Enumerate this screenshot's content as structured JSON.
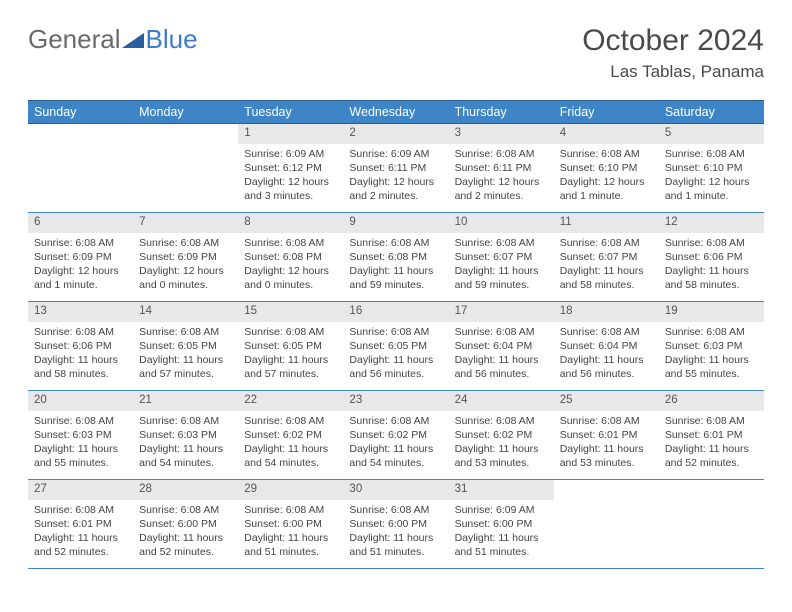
{
  "logo": {
    "general": "General",
    "blue": "Blue"
  },
  "title": "October 2024",
  "location": "Las Tablas, Panama",
  "colors": {
    "header_bg": "#3d85c6",
    "header_border": "#2c5d8f",
    "daynum_bg": "#e8e8e8",
    "text": "#444444",
    "logo_blue": "#3d7cc9"
  },
  "fonts": {
    "title_size": 30,
    "location_size": 17,
    "dow_size": 12.5,
    "body_size": 10.5
  },
  "days_of_week": [
    "Sunday",
    "Monday",
    "Tuesday",
    "Wednesday",
    "Thursday",
    "Friday",
    "Saturday"
  ],
  "weeks": [
    [
      {
        "n": "",
        "sunrise": "",
        "sunset": "",
        "daylight": ""
      },
      {
        "n": "",
        "sunrise": "",
        "sunset": "",
        "daylight": ""
      },
      {
        "n": "1",
        "sunrise": "Sunrise: 6:09 AM",
        "sunset": "Sunset: 6:12 PM",
        "daylight": "Daylight: 12 hours and 3 minutes."
      },
      {
        "n": "2",
        "sunrise": "Sunrise: 6:09 AM",
        "sunset": "Sunset: 6:11 PM",
        "daylight": "Daylight: 12 hours and 2 minutes."
      },
      {
        "n": "3",
        "sunrise": "Sunrise: 6:08 AM",
        "sunset": "Sunset: 6:11 PM",
        "daylight": "Daylight: 12 hours and 2 minutes."
      },
      {
        "n": "4",
        "sunrise": "Sunrise: 6:08 AM",
        "sunset": "Sunset: 6:10 PM",
        "daylight": "Daylight: 12 hours and 1 minute."
      },
      {
        "n": "5",
        "sunrise": "Sunrise: 6:08 AM",
        "sunset": "Sunset: 6:10 PM",
        "daylight": "Daylight: 12 hours and 1 minute."
      }
    ],
    [
      {
        "n": "6",
        "sunrise": "Sunrise: 6:08 AM",
        "sunset": "Sunset: 6:09 PM",
        "daylight": "Daylight: 12 hours and 1 minute."
      },
      {
        "n": "7",
        "sunrise": "Sunrise: 6:08 AM",
        "sunset": "Sunset: 6:09 PM",
        "daylight": "Daylight: 12 hours and 0 minutes."
      },
      {
        "n": "8",
        "sunrise": "Sunrise: 6:08 AM",
        "sunset": "Sunset: 6:08 PM",
        "daylight": "Daylight: 12 hours and 0 minutes."
      },
      {
        "n": "9",
        "sunrise": "Sunrise: 6:08 AM",
        "sunset": "Sunset: 6:08 PM",
        "daylight": "Daylight: 11 hours and 59 minutes."
      },
      {
        "n": "10",
        "sunrise": "Sunrise: 6:08 AM",
        "sunset": "Sunset: 6:07 PM",
        "daylight": "Daylight: 11 hours and 59 minutes."
      },
      {
        "n": "11",
        "sunrise": "Sunrise: 6:08 AM",
        "sunset": "Sunset: 6:07 PM",
        "daylight": "Daylight: 11 hours and 58 minutes."
      },
      {
        "n": "12",
        "sunrise": "Sunrise: 6:08 AM",
        "sunset": "Sunset: 6:06 PM",
        "daylight": "Daylight: 11 hours and 58 minutes."
      }
    ],
    [
      {
        "n": "13",
        "sunrise": "Sunrise: 6:08 AM",
        "sunset": "Sunset: 6:06 PM",
        "daylight": "Daylight: 11 hours and 58 minutes."
      },
      {
        "n": "14",
        "sunrise": "Sunrise: 6:08 AM",
        "sunset": "Sunset: 6:05 PM",
        "daylight": "Daylight: 11 hours and 57 minutes."
      },
      {
        "n": "15",
        "sunrise": "Sunrise: 6:08 AM",
        "sunset": "Sunset: 6:05 PM",
        "daylight": "Daylight: 11 hours and 57 minutes."
      },
      {
        "n": "16",
        "sunrise": "Sunrise: 6:08 AM",
        "sunset": "Sunset: 6:05 PM",
        "daylight": "Daylight: 11 hours and 56 minutes."
      },
      {
        "n": "17",
        "sunrise": "Sunrise: 6:08 AM",
        "sunset": "Sunset: 6:04 PM",
        "daylight": "Daylight: 11 hours and 56 minutes."
      },
      {
        "n": "18",
        "sunrise": "Sunrise: 6:08 AM",
        "sunset": "Sunset: 6:04 PM",
        "daylight": "Daylight: 11 hours and 56 minutes."
      },
      {
        "n": "19",
        "sunrise": "Sunrise: 6:08 AM",
        "sunset": "Sunset: 6:03 PM",
        "daylight": "Daylight: 11 hours and 55 minutes."
      }
    ],
    [
      {
        "n": "20",
        "sunrise": "Sunrise: 6:08 AM",
        "sunset": "Sunset: 6:03 PM",
        "daylight": "Daylight: 11 hours and 55 minutes."
      },
      {
        "n": "21",
        "sunrise": "Sunrise: 6:08 AM",
        "sunset": "Sunset: 6:03 PM",
        "daylight": "Daylight: 11 hours and 54 minutes."
      },
      {
        "n": "22",
        "sunrise": "Sunrise: 6:08 AM",
        "sunset": "Sunset: 6:02 PM",
        "daylight": "Daylight: 11 hours and 54 minutes."
      },
      {
        "n": "23",
        "sunrise": "Sunrise: 6:08 AM",
        "sunset": "Sunset: 6:02 PM",
        "daylight": "Daylight: 11 hours and 54 minutes."
      },
      {
        "n": "24",
        "sunrise": "Sunrise: 6:08 AM",
        "sunset": "Sunset: 6:02 PM",
        "daylight": "Daylight: 11 hours and 53 minutes."
      },
      {
        "n": "25",
        "sunrise": "Sunrise: 6:08 AM",
        "sunset": "Sunset: 6:01 PM",
        "daylight": "Daylight: 11 hours and 53 minutes."
      },
      {
        "n": "26",
        "sunrise": "Sunrise: 6:08 AM",
        "sunset": "Sunset: 6:01 PM",
        "daylight": "Daylight: 11 hours and 52 minutes."
      }
    ],
    [
      {
        "n": "27",
        "sunrise": "Sunrise: 6:08 AM",
        "sunset": "Sunset: 6:01 PM",
        "daylight": "Daylight: 11 hours and 52 minutes."
      },
      {
        "n": "28",
        "sunrise": "Sunrise: 6:08 AM",
        "sunset": "Sunset: 6:00 PM",
        "daylight": "Daylight: 11 hours and 52 minutes."
      },
      {
        "n": "29",
        "sunrise": "Sunrise: 6:08 AM",
        "sunset": "Sunset: 6:00 PM",
        "daylight": "Daylight: 11 hours and 51 minutes."
      },
      {
        "n": "30",
        "sunrise": "Sunrise: 6:08 AM",
        "sunset": "Sunset: 6:00 PM",
        "daylight": "Daylight: 11 hours and 51 minutes."
      },
      {
        "n": "31",
        "sunrise": "Sunrise: 6:09 AM",
        "sunset": "Sunset: 6:00 PM",
        "daylight": "Daylight: 11 hours and 51 minutes."
      },
      {
        "n": "",
        "sunrise": "",
        "sunset": "",
        "daylight": ""
      },
      {
        "n": "",
        "sunrise": "",
        "sunset": "",
        "daylight": ""
      }
    ]
  ]
}
